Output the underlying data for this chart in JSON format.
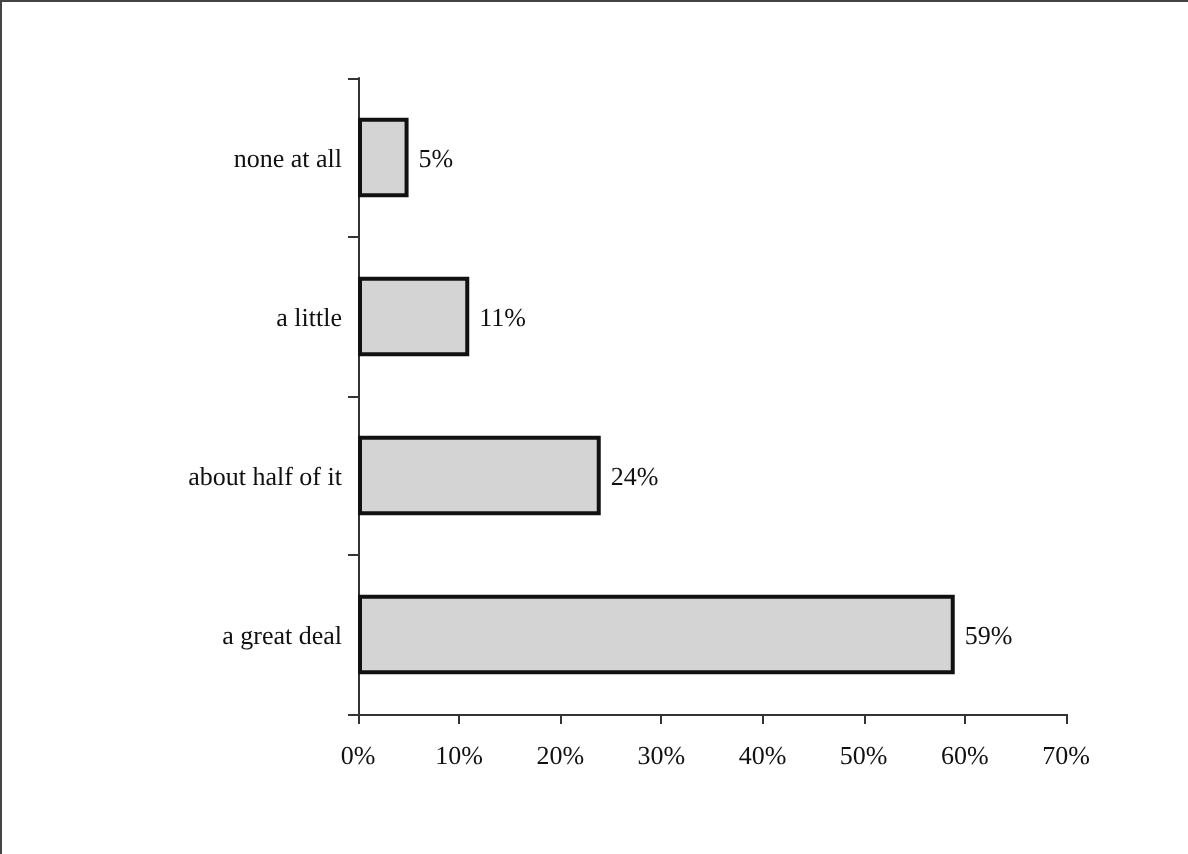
{
  "chart_data": {
    "type": "bar",
    "orientation": "horizontal",
    "categories": [
      "none at all",
      "a little",
      "about half of it",
      "a great deal"
    ],
    "values": [
      5,
      11,
      24,
      59
    ],
    "value_labels": [
      "5%",
      "11%",
      "24%",
      "59%"
    ],
    "color": "#d4d4d4",
    "xlim": [
      0,
      70
    ],
    "xticks": [
      {
        "value": 0,
        "label": "0%"
      },
      {
        "value": 10,
        "label": "10%"
      },
      {
        "value": 20,
        "label": "20%"
      },
      {
        "value": 30,
        "label": "30%"
      },
      {
        "value": 40,
        "label": "40%"
      },
      {
        "value": 50,
        "label": "50%"
      },
      {
        "value": 60,
        "label": "60%"
      },
      {
        "value": 70,
        "label": "70%"
      }
    ],
    "grid": false
  }
}
